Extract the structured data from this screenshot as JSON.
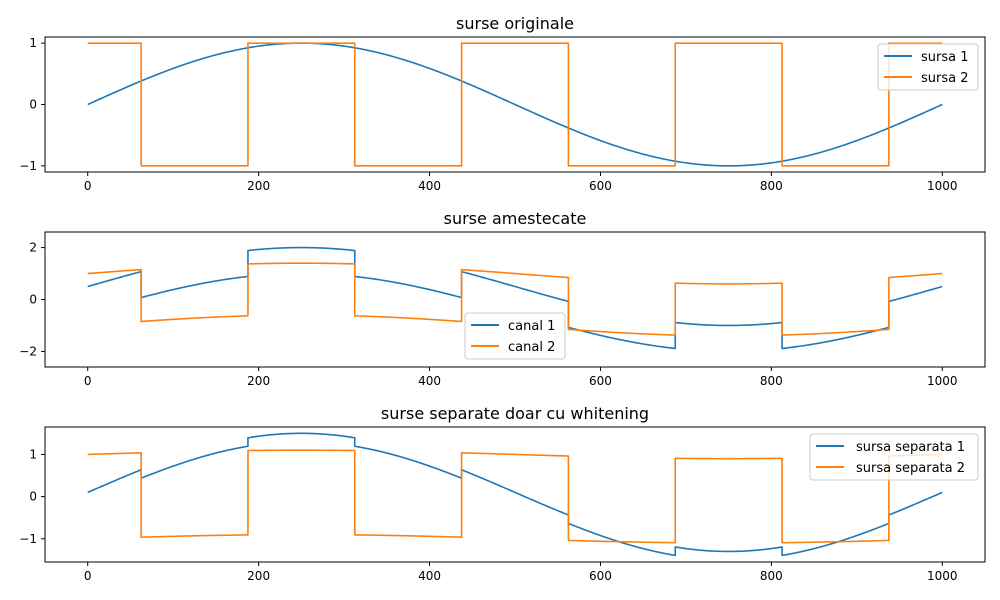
{
  "chart_data": [
    {
      "type": "line",
      "title": "surse originale",
      "xlim": [
        -50,
        1050
      ],
      "ylim": [
        -1.1,
        1.1
      ],
      "xticks": [
        0,
        200,
        400,
        600,
        800,
        1000
      ],
      "yticks": [
        -1,
        0,
        1
      ],
      "ytick_labels": [
        "−1",
        "0",
        "1"
      ],
      "legend_position": "top-right",
      "series": [
        {
          "name": "sursa 1",
          "color": "#1f77b4",
          "kind": "sine",
          "amp": 1.0,
          "square_coef": 0.0,
          "offset": 0.0
        },
        {
          "name": "sursa 2",
          "color": "#ff7f0e",
          "kind": "square",
          "amp": 0.0,
          "square_coef": 1.0,
          "offset": 0.0
        }
      ]
    },
    {
      "type": "line",
      "title": "surse amestecate",
      "xlim": [
        -50,
        1050
      ],
      "ylim": [
        -2.6,
        2.6
      ],
      "xticks": [
        0,
        200,
        400,
        600,
        800,
        1000
      ],
      "yticks": [
        -2,
        0,
        2
      ],
      "ytick_labels": [
        "−2",
        "0",
        "2"
      ],
      "legend_position": "bottom-center",
      "series": [
        {
          "name": "canal 1",
          "color": "#1f77b4",
          "kind": "mix",
          "amp": 1.5,
          "square_coef": 0.5,
          "offset": 0.5
        },
        {
          "name": "canal 2",
          "color": "#ff7f0e",
          "kind": "mix",
          "amp": 0.4,
          "square_coef": 1.0,
          "offset": 1.0
        }
      ]
    },
    {
      "type": "line",
      "title": "surse separate doar cu whitening",
      "xlim": [
        -50,
        1050
      ],
      "ylim": [
        -1.55,
        1.65
      ],
      "xticks": [
        0,
        200,
        400,
        600,
        800,
        1000
      ],
      "yticks": [
        -1,
        0,
        1
      ],
      "ytick_labels": [
        "−1",
        "0",
        "1"
      ],
      "legend_position": "top-right",
      "series": [
        {
          "name": "sursa separata 1",
          "color": "#1f77b4",
          "kind": "mix",
          "amp": 1.4,
          "square_coef": 0.1,
          "offset": 0.1
        },
        {
          "name": "sursa separata 2",
          "color": "#ff7f0e",
          "kind": "mix",
          "amp": 0.1,
          "square_coef": 1.0,
          "offset": 0.0
        }
      ]
    }
  ]
}
